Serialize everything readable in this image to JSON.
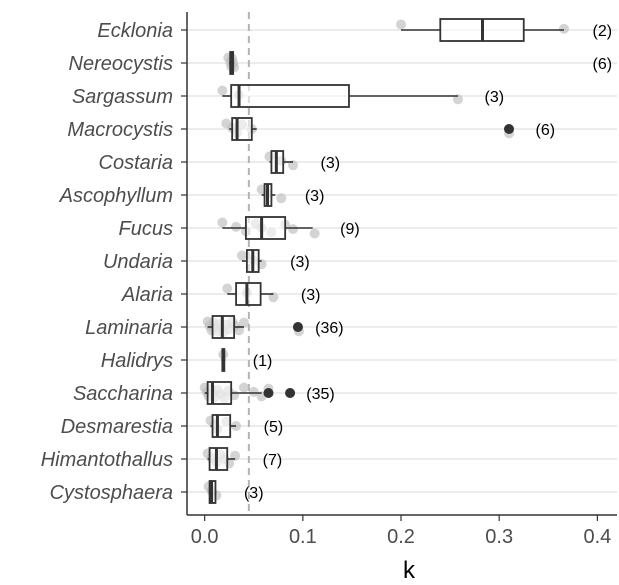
{
  "chart_data": {
    "type": "boxplot",
    "orientation": "horizontal",
    "xlabel": "k",
    "xlim": [
      -0.018,
      0.42
    ],
    "xticks": [
      0.0,
      0.1,
      0.2,
      0.3,
      0.4
    ],
    "xtick_labels": [
      "0.0",
      "0.1",
      "0.2",
      "0.3",
      "0.4"
    ],
    "reference_line_x": 0.045,
    "grid": "horizontal",
    "colors": {
      "box": "#333333",
      "point": "#bdbdbd",
      "outlier": "#333333",
      "grid": "#e5e5e5",
      "refline": "#b3b3b3",
      "axis": "#333333"
    },
    "categories": [
      "Ecklonia",
      "Nereocystis",
      "Sargassum",
      "Macrocystis",
      "Costaria",
      "Ascophyllum",
      "Fucus",
      "Undaria",
      "Alaria",
      "Laminaria",
      "Halidrys",
      "Saccharina",
      "Desmarestia",
      "Himantothallus",
      "Cystosphaera"
    ],
    "counts": [
      "(2)",
      "(6)",
      "(3)",
      "(6)",
      "(3)",
      "(3)",
      "(9)",
      "(3)",
      "(3)",
      "(36)",
      "(1)",
      "(35)",
      "(5)",
      "(7)",
      "(3)"
    ],
    "count_x": [
      0.405,
      0.405,
      0.295,
      0.347,
      0.128,
      0.112,
      0.148,
      0.097,
      0.108,
      0.127,
      0.059,
      0.118,
      0.07,
      0.069,
      0.05
    ],
    "boxes": [
      {
        "min": 0.2,
        "q1": 0.24,
        "median": 0.283,
        "q3": 0.325,
        "max": 0.366,
        "outliers": [],
        "points": [
          0.2,
          0.366
        ]
      },
      {
        "min": 0.025,
        "q1": 0.026,
        "median": 0.027,
        "q3": 0.029,
        "max": 0.03,
        "outliers": [],
        "points": [
          0.024,
          0.026,
          0.027,
          0.028,
          0.029,
          0.03
        ]
      },
      {
        "min": 0.018,
        "q1": 0.027,
        "median": 0.035,
        "q3": 0.147,
        "max": 0.258,
        "outliers": [],
        "points": [
          0.018,
          0.035,
          0.258
        ]
      },
      {
        "min": 0.025,
        "q1": 0.028,
        "median": 0.033,
        "q3": 0.048,
        "max": 0.053,
        "outliers": [
          0.31
        ],
        "points": [
          0.022,
          0.028,
          0.033,
          0.038,
          0.048,
          0.31
        ]
      },
      {
        "min": 0.066,
        "q1": 0.068,
        "median": 0.073,
        "q3": 0.08,
        "max": 0.09,
        "outliers": [],
        "points": [
          0.066,
          0.078,
          0.09
        ]
      },
      {
        "min": 0.058,
        "q1": 0.061,
        "median": 0.064,
        "q3": 0.068,
        "max": 0.072,
        "outliers": [],
        "points": [
          0.058,
          0.064,
          0.078
        ]
      },
      {
        "min": 0.018,
        "q1": 0.042,
        "median": 0.058,
        "q3": 0.082,
        "max": 0.11,
        "outliers": [],
        "points": [
          0.018,
          0.032,
          0.042,
          0.052,
          0.058,
          0.068,
          0.082,
          0.09,
          0.112
        ]
      },
      {
        "min": 0.038,
        "q1": 0.043,
        "median": 0.049,
        "q3": 0.055,
        "max": 0.058,
        "outliers": [],
        "points": [
          0.038,
          0.049,
          0.058
        ]
      },
      {
        "min": 0.023,
        "q1": 0.032,
        "median": 0.043,
        "q3": 0.057,
        "max": 0.07,
        "outliers": [],
        "points": [
          0.023,
          0.043,
          0.07
        ]
      },
      {
        "min": 0.003,
        "q1": 0.008,
        "median": 0.018,
        "q3": 0.03,
        "max": 0.04,
        "outliers": [
          0.095
        ],
        "points": [
          0.003,
          0.005,
          0.007,
          0.009,
          0.011,
          0.013,
          0.015,
          0.017,
          0.019,
          0.022,
          0.025,
          0.028,
          0.031,
          0.035,
          0.04,
          0.095,
          0.096
        ]
      },
      {
        "min": 0.017,
        "q1": 0.018,
        "median": 0.019,
        "q3": 0.02,
        "max": 0.021,
        "outliers": [],
        "points": [
          0.019
        ]
      },
      {
        "min": 0.0,
        "q1": 0.003,
        "median": 0.008,
        "q3": 0.027,
        "max": 0.058,
        "outliers": [
          0.065,
          0.087
        ],
        "points": [
          0.0,
          0.002,
          0.004,
          0.006,
          0.008,
          0.01,
          0.013,
          0.016,
          0.02,
          0.024,
          0.03,
          0.04,
          0.05,
          0.058,
          0.065,
          0.087
        ]
      },
      {
        "min": 0.006,
        "q1": 0.008,
        "median": 0.013,
        "q3": 0.026,
        "max": 0.032,
        "outliers": [],
        "points": [
          0.006,
          0.01,
          0.013,
          0.022,
          0.032
        ]
      },
      {
        "min": 0.003,
        "q1": 0.005,
        "median": 0.012,
        "q3": 0.023,
        "max": 0.031,
        "outliers": [],
        "points": [
          0.003,
          0.007,
          0.012,
          0.016,
          0.02,
          0.025,
          0.031
        ]
      },
      {
        "min": 0.004,
        "q1": 0.005,
        "median": 0.007,
        "q3": 0.011,
        "max": 0.012,
        "outliers": [],
        "points": [
          0.004,
          0.007,
          0.012
        ]
      }
    ]
  }
}
